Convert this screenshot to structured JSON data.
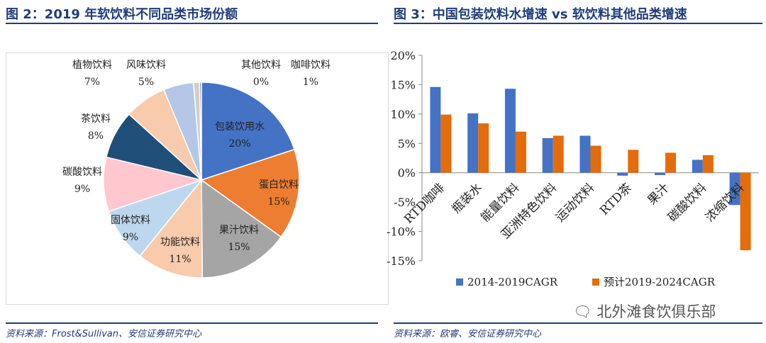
{
  "left": {
    "title": "图 2：2019 年软饮料不同品类市场份额",
    "source": "资料来源：Frost&Sullivan、安信证券研究中心",
    "chart_data": {
      "type": "pie",
      "title": "",
      "slices": [
        {
          "name": "包装饮用水",
          "label": "20%",
          "value": 20,
          "color": "#4472c4"
        },
        {
          "name": "蛋白饮料",
          "label": "15%",
          "value": 15,
          "color": "#ed7d31"
        },
        {
          "name": "果汁饮料",
          "label": "15%",
          "value": 15,
          "color": "#a5a5a5"
        },
        {
          "name": "功能饮料",
          "label": "11%",
          "value": 11,
          "color": "#f8cbad"
        },
        {
          "name": "固体饮料",
          "label": "9%",
          "value": 9,
          "color": "#bdd7ee"
        },
        {
          "name": "碳酸饮料",
          "label": "9%",
          "value": 9,
          "color": "#ffc7ce"
        },
        {
          "name": "茶饮料",
          "label": "8%",
          "value": 8,
          "color": "#1f4e79"
        },
        {
          "name": "植物饮料",
          "label": "7%",
          "value": 7,
          "color": "#f8cbad"
        },
        {
          "name": "风味饮料",
          "label": "5%",
          "value": 5,
          "color": "#b4c7e7"
        },
        {
          "name": "咖啡饮料",
          "label": "1%",
          "value": 1,
          "color": "#d0cece"
        },
        {
          "name": "其他饮料",
          "label": "0%",
          "value": 0.3,
          "color": "#7f7f7f"
        }
      ]
    }
  },
  "right": {
    "title": "图 3：中国包装饮料水增速 vs 软饮料其他品类增速",
    "source": "资料来源：欧睿、安信证券研究中心",
    "chart_data": {
      "type": "bar",
      "title": "",
      "xlabel": "",
      "ylabel": "",
      "categories": [
        "RTD咖啡",
        "瓶装水",
        "能量饮料",
        "亚洲特色饮料",
        "运动饮料",
        "RTD茶",
        "果汁",
        "碳酸饮料",
        "浓缩饮料"
      ],
      "ylim": [
        -15,
        20
      ],
      "yticks": [
        "20%",
        "15%",
        "10%",
        "5%",
        "0%",
        "-5%",
        "-10%",
        "-15%"
      ],
      "yticks_values": [
        20,
        15,
        10,
        5,
        0,
        -5,
        -10,
        -15
      ],
      "series": [
        {
          "name": "2014-2019CAGR",
          "color": "#4472c4",
          "values": [
            14.6,
            10.1,
            14.3,
            5.9,
            6.3,
            -0.5,
            -0.4,
            2.2,
            -5.5
          ]
        },
        {
          "name": "预计2019-2024CAGR",
          "color": "#e46c0a",
          "values": [
            9.9,
            8.4,
            7.0,
            6.3,
            4.6,
            3.9,
            3.4,
            3.0,
            -13.2
          ]
        }
      ],
      "legend": "bottom"
    }
  },
  "watermark": "北外滩食饮俱乐部"
}
